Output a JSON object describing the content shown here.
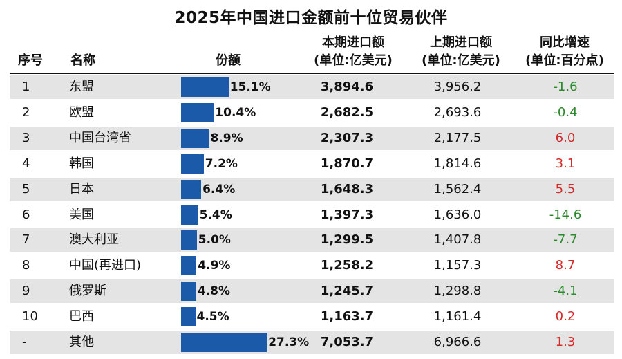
{
  "title": "2025年中国进口金额前十位贸易伙伴",
  "headers": {
    "idx": "序号",
    "name": "名称",
    "share": "份额",
    "current_1": "本期进口额",
    "current_2": "(单位:亿美元)",
    "previous_1": "上期进口额",
    "previous_2": "(单位:亿美元)",
    "yoy_1": "同比增速",
    "yoy_2": "(单位:百分点)"
  },
  "colors": {
    "bar": "#1a5aa8",
    "positive": "#d42a2a",
    "negative": "#2a8a2a",
    "stripe": "#e4e4e4"
  },
  "chart_data": {
    "type": "table",
    "title": "2025年中国进口金额前十位贸易伙伴",
    "columns": [
      "序号",
      "名称",
      "份额",
      "本期进口额 (单位:亿美元)",
      "上期进口额 (单位:亿美元)",
      "同比增速 (单位:百分点)"
    ],
    "rows": [
      {
        "idx": "1",
        "name": "东盟",
        "share": 15.1,
        "share_label": "15.1%",
        "current": "3,894.6",
        "previous": "3,956.2",
        "yoy": "-1.6",
        "yoy_value": -1.6
      },
      {
        "idx": "2",
        "name": "欧盟",
        "share": 10.4,
        "share_label": "10.4%",
        "current": "2,682.5",
        "previous": "2,693.6",
        "yoy": "-0.4",
        "yoy_value": -0.4
      },
      {
        "idx": "3",
        "name": "中国台湾省",
        "share": 8.9,
        "share_label": "8.9%",
        "current": "2,307.3",
        "previous": "2,177.5",
        "yoy": "6.0",
        "yoy_value": 6.0
      },
      {
        "idx": "4",
        "name": "韩国",
        "share": 7.2,
        "share_label": "7.2%",
        "current": "1,870.7",
        "previous": "1,814.6",
        "yoy": "3.1",
        "yoy_value": 3.1
      },
      {
        "idx": "5",
        "name": "日本",
        "share": 6.4,
        "share_label": "6.4%",
        "current": "1,648.3",
        "previous": "1,562.4",
        "yoy": "5.5",
        "yoy_value": 5.5
      },
      {
        "idx": "6",
        "name": "美国",
        "share": 5.4,
        "share_label": "5.4%",
        "current": "1,397.3",
        "previous": "1,636.0",
        "yoy": "-14.6",
        "yoy_value": -14.6
      },
      {
        "idx": "7",
        "name": "澳大利亚",
        "share": 5.0,
        "share_label": "5.0%",
        "current": "1,299.5",
        "previous": "1,407.8",
        "yoy": "-7.7",
        "yoy_value": -7.7
      },
      {
        "idx": "8",
        "name": "中国(再进口)",
        "share": 4.9,
        "share_label": "4.9%",
        "current": "1,258.2",
        "previous": "1,157.3",
        "yoy": "8.7",
        "yoy_value": 8.7
      },
      {
        "idx": "9",
        "name": "俄罗斯",
        "share": 4.8,
        "share_label": "4.8%",
        "current": "1,245.7",
        "previous": "1,298.8",
        "yoy": "-4.1",
        "yoy_value": -4.1
      },
      {
        "idx": "10",
        "name": "巴西",
        "share": 4.5,
        "share_label": "4.5%",
        "current": "1,163.7",
        "previous": "1,161.4",
        "yoy": "0.2",
        "yoy_value": 0.2
      },
      {
        "idx": "-",
        "name": "其他",
        "share": 27.3,
        "share_label": "27.3%",
        "current": "7,053.7",
        "previous": "6,966.6",
        "yoy": "1.3",
        "yoy_value": 1.3
      }
    ]
  }
}
